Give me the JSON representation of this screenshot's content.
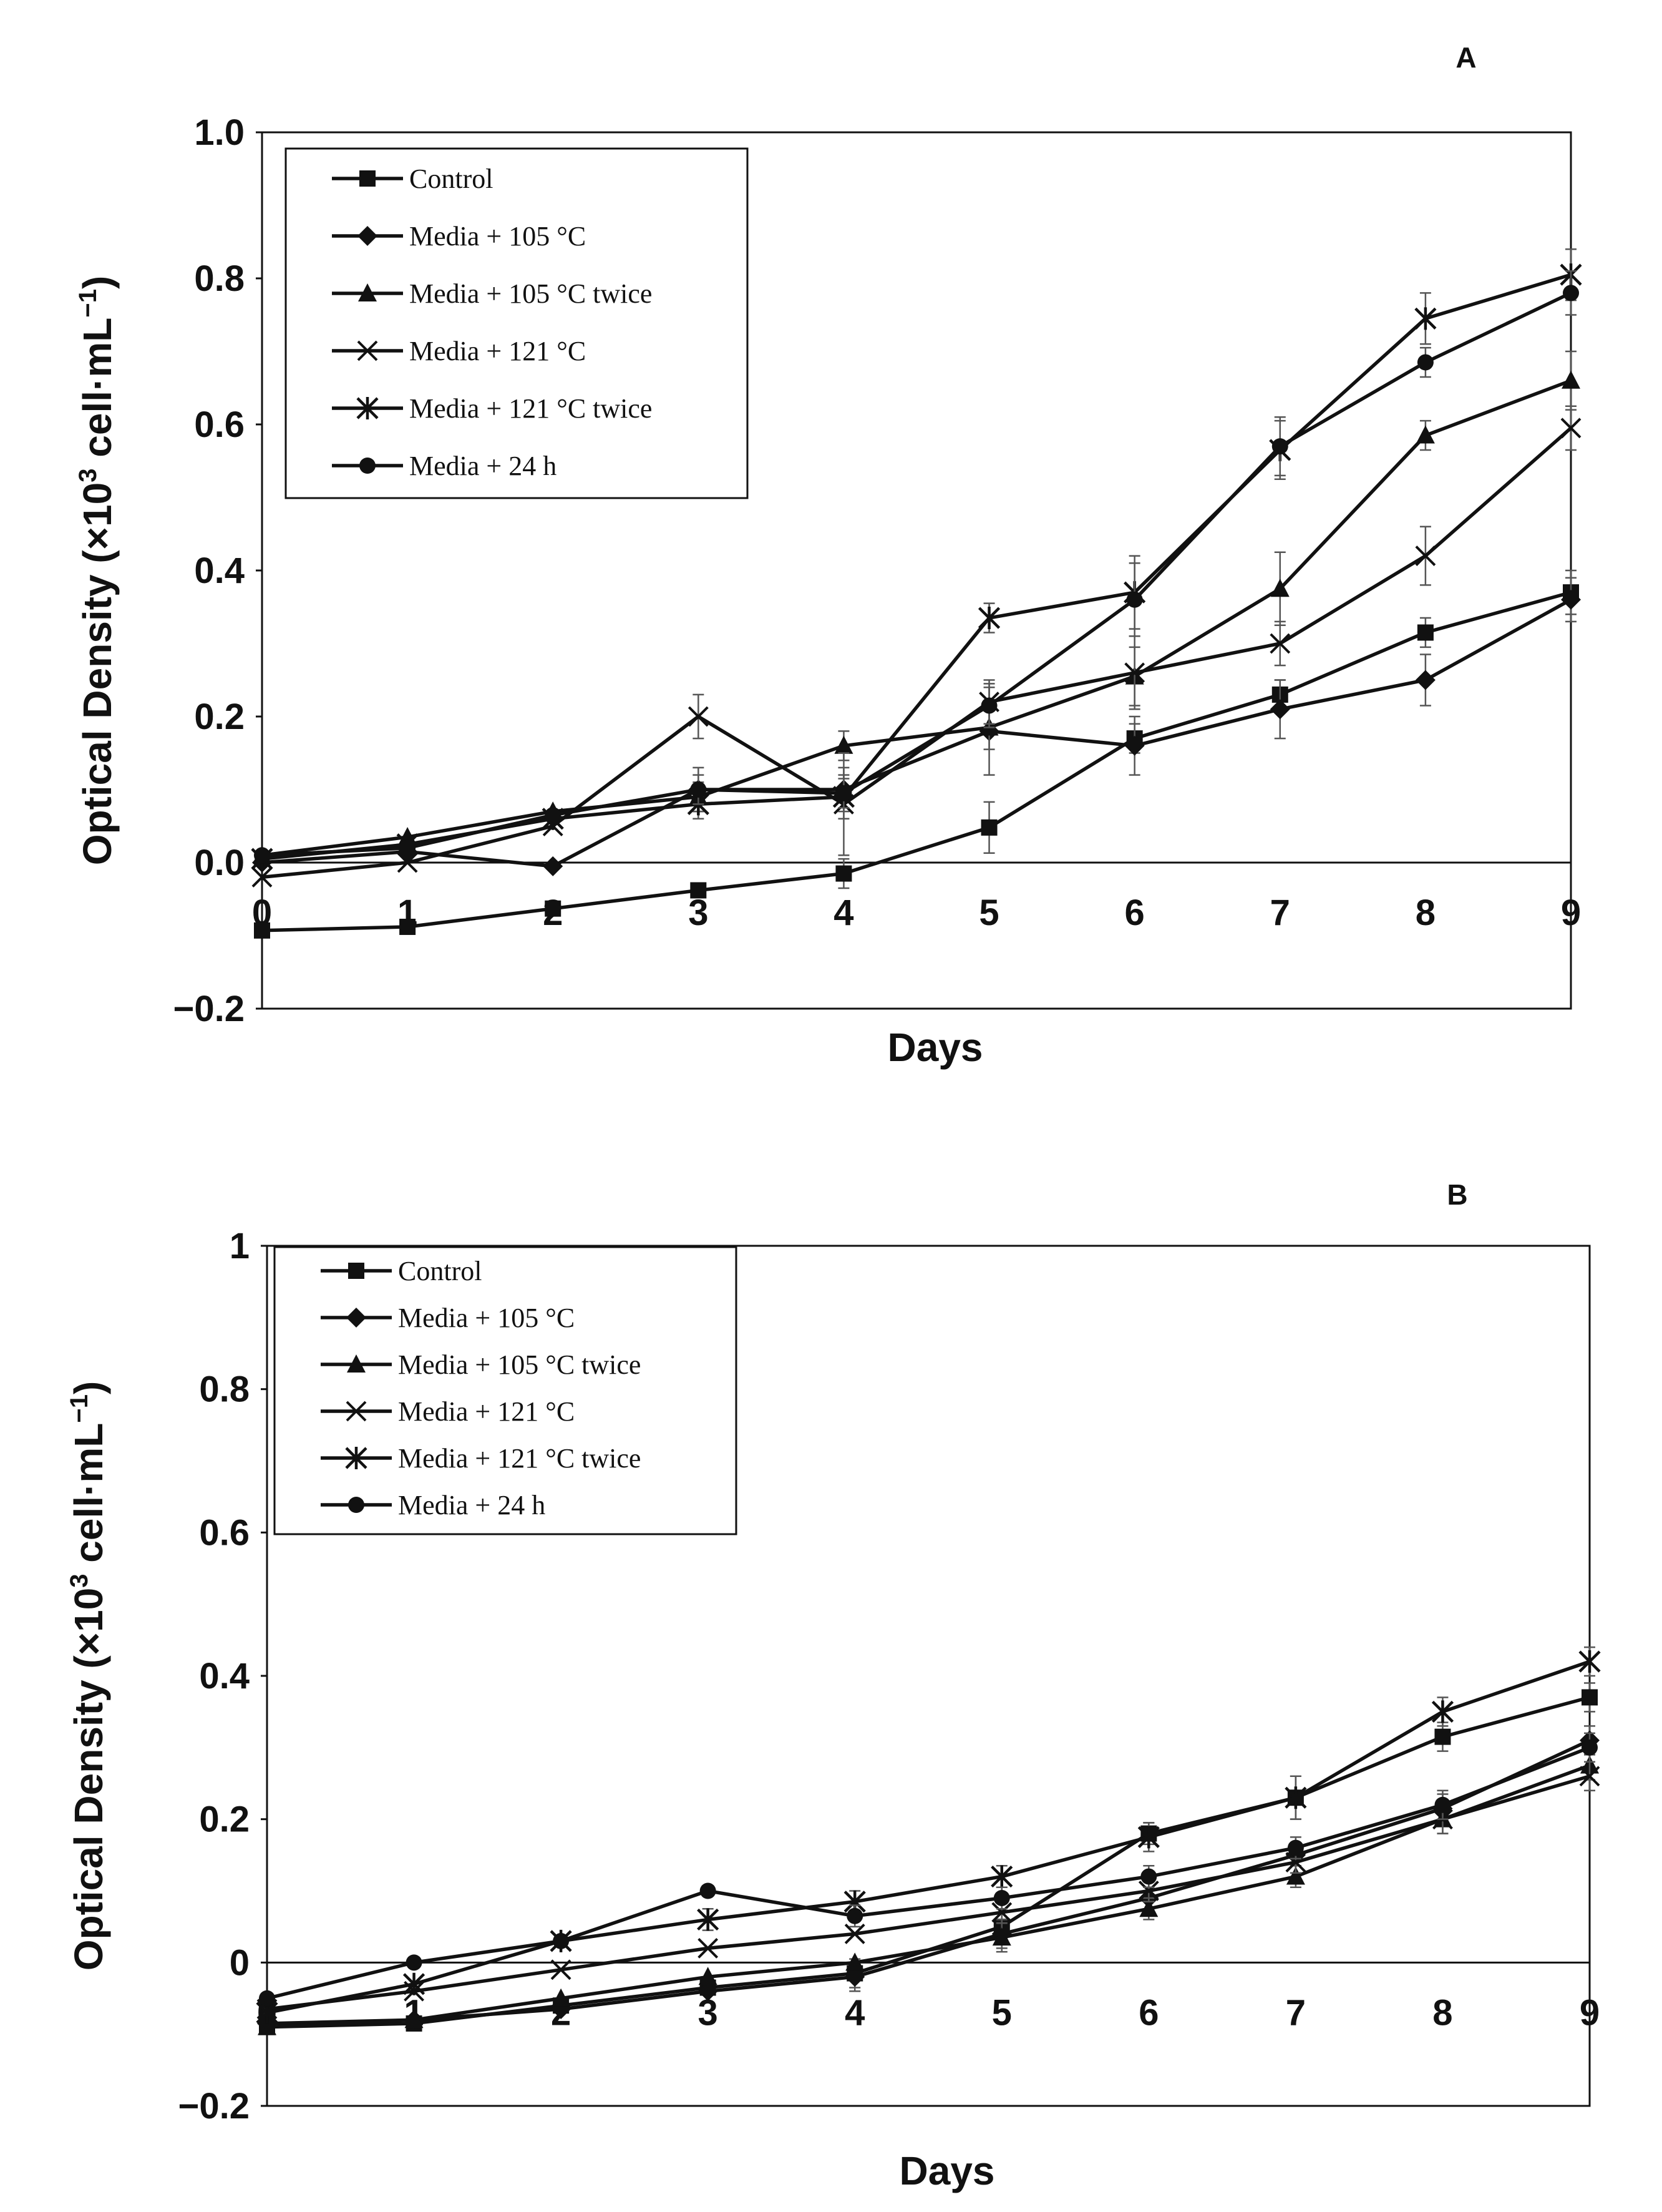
{
  "chart_data": [
    {
      "type": "line",
      "panel_label": "A",
      "xlabel": "Days",
      "ylabel_prefix": "Optical Density (×10",
      "ylabel_sup": "3",
      "ylabel_suffix": " cell·mL",
      "ylabel_sup2": "−1",
      "ylabel_close": ")",
      "x": [
        0,
        1,
        2,
        3,
        4,
        5,
        6,
        7,
        8,
        9
      ],
      "xlim": [
        0,
        9
      ],
      "ylim": [
        -0.2,
        1.0
      ],
      "yticks": [
        -0.2,
        0.0,
        0.2,
        0.4,
        0.6,
        0.8,
        1.0
      ],
      "ytick_labels": [
        "−0.2",
        "0.0",
        "0.2",
        "0.4",
        "0.6",
        "0.8",
        "1.0"
      ],
      "xtick_labels": [
        "0",
        "1",
        "2",
        "3",
        "4",
        "5",
        "6",
        "7",
        "8",
        "9"
      ],
      "legend_position": "top-left",
      "series": [
        {
          "name": "Control",
          "marker": "square",
          "values": [
            -0.093,
            -0.088,
            -0.063,
            -0.038,
            -0.015,
            0.048,
            0.17,
            0.23,
            0.315,
            0.37
          ],
          "errors": [
            0,
            0,
            0,
            0,
            0.02,
            0.035,
            0.02,
            0.02,
            0.02,
            0.03
          ]
        },
        {
          "name": "Media + 105 °C",
          "marker": "diamond",
          "values": [
            0.0,
            0.015,
            -0.005,
            0.1,
            0.1,
            0.18,
            0.16,
            0.21,
            0.25,
            0.36
          ],
          "errors": [
            0,
            0,
            0,
            0.03,
            0.03,
            0.06,
            0.04,
            0.04,
            0.035,
            0.03
          ]
        },
        {
          "name": "Media + 105 °C twice",
          "marker": "triangle",
          "values": [
            0.01,
            0.035,
            0.07,
            0.09,
            0.16,
            0.185,
            0.255,
            0.375,
            0.585,
            0.66
          ],
          "errors": [
            0,
            0,
            0,
            0.02,
            0.02,
            0.03,
            0.04,
            0.05,
            0.02,
            0.04
          ]
        },
        {
          "name": "Media + 121 °C",
          "marker": "x",
          "values": [
            -0.02,
            0.0,
            0.05,
            0.2,
            0.08,
            0.22,
            0.26,
            0.3,
            0.42,
            0.595
          ],
          "errors": [
            0,
            0,
            0,
            0.03,
            0.07,
            0.03,
            0.05,
            0.03,
            0.04,
            0.03
          ]
        },
        {
          "name": "Media + 121 °C twice",
          "marker": "star",
          "values": [
            0.005,
            0.025,
            0.06,
            0.08,
            0.09,
            0.335,
            0.37,
            0.565,
            0.745,
            0.805
          ],
          "errors": [
            0,
            0,
            0,
            0.02,
            0.03,
            0.02,
            0.05,
            0.04,
            0.035,
            0.035
          ]
        },
        {
          "name": "Media + 24 h",
          "marker": "circle",
          "values": [
            0.01,
            0.02,
            0.065,
            0.1,
            0.095,
            0.215,
            0.36,
            0.57,
            0.685,
            0.78
          ],
          "errors": [
            0,
            0,
            0,
            0.02,
            0.02,
            0.03,
            0.05,
            0.04,
            0.02,
            0.03
          ]
        }
      ]
    },
    {
      "type": "line",
      "panel_label": "B",
      "xlabel": "Days",
      "ylabel_prefix": "Optical Density (×10",
      "ylabel_sup": "3",
      "ylabel_suffix": " cell·mL",
      "ylabel_sup2": "−1",
      "ylabel_close": ")",
      "x": [
        0,
        1,
        2,
        3,
        4,
        5,
        6,
        7,
        8,
        9
      ],
      "xlim": [
        0,
        9
      ],
      "ylim": [
        -0.2,
        1.0
      ],
      "yticks": [
        -0.2,
        0.0,
        0.2,
        0.4,
        0.6,
        0.8,
        1.0
      ],
      "ytick_labels": [
        "−0.2",
        "0",
        "0.2",
        "0.4",
        "0.6",
        "0.8",
        "1"
      ],
      "xtick_labels": [
        "0",
        "1",
        "2",
        "3",
        "4",
        "5",
        "6",
        "7",
        "8",
        "9"
      ],
      "legend_position": "top-left",
      "series": [
        {
          "name": "Control",
          "marker": "square",
          "values": [
            -0.09,
            -0.085,
            -0.06,
            -0.035,
            -0.015,
            0.05,
            0.18,
            0.23,
            0.315,
            0.37
          ],
          "errors": [
            0,
            0,
            0,
            0,
            0.02,
            0.02,
            0.015,
            0.03,
            0.02,
            0.02
          ]
        },
        {
          "name": "Media + 105 °C",
          "marker": "diamond",
          "values": [
            -0.085,
            -0.08,
            -0.065,
            -0.04,
            -0.02,
            0.04,
            0.09,
            0.15,
            0.215,
            0.31
          ],
          "errors": [
            0,
            0,
            0,
            0,
            0.02,
            0.02,
            0.015,
            0.015,
            0.02,
            0.02
          ]
        },
        {
          "name": "Media + 105 °C twice",
          "marker": "triangle",
          "values": [
            -0.09,
            -0.08,
            -0.05,
            -0.02,
            0.0,
            0.035,
            0.075,
            0.12,
            0.2,
            0.275
          ],
          "errors": [
            0,
            0,
            0,
            0,
            0,
            0.02,
            0.015,
            0.015,
            0.02,
            0.02
          ]
        },
        {
          "name": "Media + 121 °C",
          "marker": "x",
          "values": [
            -0.065,
            -0.04,
            -0.01,
            0.02,
            0.04,
            0.07,
            0.1,
            0.14,
            0.2,
            0.26
          ],
          "errors": [
            0,
            0,
            0,
            0,
            0,
            0.015,
            0.015,
            0.015,
            0.02,
            0.02
          ]
        },
        {
          "name": "Media + 121 °C twice",
          "marker": "star",
          "values": [
            -0.07,
            -0.03,
            0.03,
            0.06,
            0.085,
            0.12,
            0.175,
            0.23,
            0.35,
            0.42
          ],
          "errors": [
            0,
            0,
            0,
            0.015,
            0.015,
            0.015,
            0.02,
            0.03,
            0.02,
            0.02
          ]
        },
        {
          "name": "Media + 24 h",
          "marker": "circle",
          "values": [
            -0.05,
            0.0,
            0.03,
            0.1,
            0.065,
            0.09,
            0.12,
            0.16,
            0.22,
            0.3
          ],
          "errors": [
            0,
            0,
            0,
            0,
            0.015,
            0.015,
            0.015,
            0.015,
            0.02,
            0.02
          ]
        }
      ]
    }
  ]
}
